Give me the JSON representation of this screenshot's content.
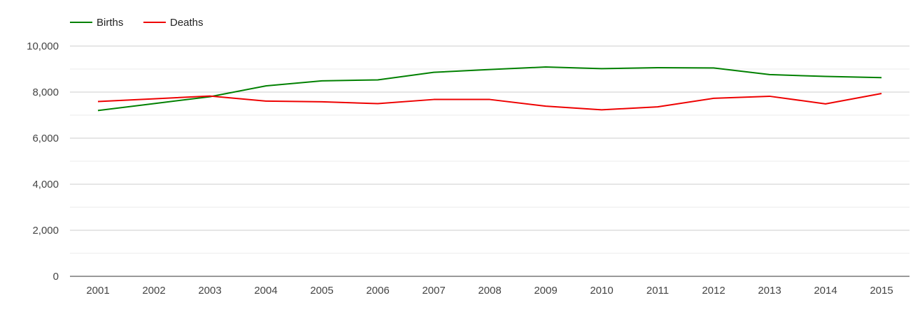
{
  "chart_data": {
    "type": "line",
    "title": "",
    "xlabel": "",
    "ylabel": "",
    "categories": [
      "2001",
      "2002",
      "2003",
      "2004",
      "2005",
      "2006",
      "2007",
      "2008",
      "2009",
      "2010",
      "2011",
      "2012",
      "2013",
      "2014",
      "2015"
    ],
    "series": [
      {
        "name": "Births",
        "color": "#008000",
        "values": [
          7200,
          7500,
          7800,
          8270,
          8490,
          8530,
          8860,
          8980,
          9090,
          9020,
          9060,
          9050,
          8760,
          8680,
          8630
        ]
      },
      {
        "name": "Deaths",
        "color": "#ee0000",
        "values": [
          7590,
          7710,
          7830,
          7610,
          7580,
          7500,
          7680,
          7680,
          7390,
          7230,
          7360,
          7730,
          7820,
          7490,
          7940
        ]
      }
    ],
    "ylim": [
      0,
      10000
    ],
    "y_ticks": [
      0,
      2000,
      4000,
      6000,
      8000,
      10000
    ],
    "y_tick_labels": [
      "0",
      "2,000",
      "4,000",
      "6,000",
      "8,000",
      "10,000"
    ],
    "grid": true,
    "legend_position": "top-left"
  }
}
